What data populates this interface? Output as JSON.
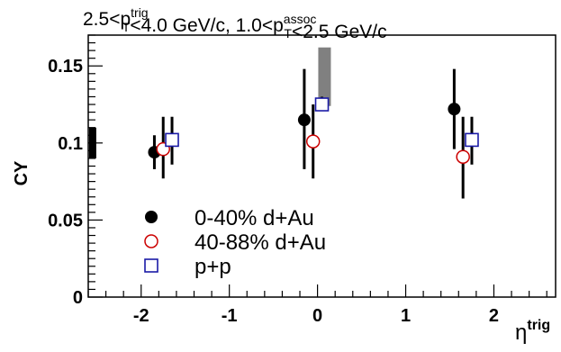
{
  "chart_data": {
    "type": "scatter",
    "title": {
      "parts": [
        {
          "t": "2.5<p"
        },
        {
          "sub": "T",
          "sup": "trig"
        },
        {
          "t": "<4.0 GeV/c, 1.0<p"
        },
        {
          "sub": "T",
          "sup": "assoc"
        },
        {
          "t": "<2.5 GeV/c"
        }
      ]
    },
    "xlabel": {
      "base": "η",
      "sup": "trig"
    },
    "ylabel": "CY",
    "xlim": [
      -2.6,
      2.7
    ],
    "ylim": [
      0,
      0.17
    ],
    "xticks": [
      -2,
      -1,
      0,
      1,
      2
    ],
    "xtick_labels": [
      "-2",
      "-1",
      "0",
      "1",
      "2"
    ],
    "yticks": [
      0,
      0.05,
      0.1,
      0.15
    ],
    "ytick_labels": [
      "0",
      "0.05",
      "0.1",
      "0.15"
    ],
    "legend_position": "bottom-left",
    "series": [
      {
        "name": "0-40% d+Au",
        "marker": "filled-circle",
        "color": "#000000",
        "points": [
          {
            "x": -1.85,
            "y": 0.094,
            "err_lo": 0.083,
            "err_hi": 0.105
          },
          {
            "x": -0.15,
            "y": 0.115,
            "err_lo": 0.083,
            "err_hi": 0.148
          },
          {
            "x": 1.55,
            "y": 0.122,
            "err_lo": 0.096,
            "err_hi": 0.148
          }
        ]
      },
      {
        "name": "40-88% d+Au",
        "marker": "open-circle",
        "color": "#cc0000",
        "points": [
          {
            "x": -1.75,
            "y": 0.096,
            "err_lo": 0.077,
            "err_hi": 0.117
          },
          {
            "x": -0.05,
            "y": 0.101,
            "err_lo": 0.077,
            "err_hi": 0.125
          },
          {
            "x": 1.65,
            "y": 0.091,
            "err_lo": 0.064,
            "err_hi": 0.117
          }
        ]
      },
      {
        "name": "p+p",
        "marker": "open-square",
        "color": "#1a1aa6",
        "points": [
          {
            "x": -1.65,
            "y": 0.102,
            "err_lo": 0.086,
            "err_hi": 0.117
          },
          {
            "x": 0.05,
            "y": 0.125,
            "err_lo": 0.121,
            "err_hi": 0.13
          },
          {
            "x": 1.75,
            "y": 0.102,
            "err_lo": 0.086,
            "err_hi": 0.117
          }
        ]
      }
    ],
    "systematic_bands": [
      {
        "x": 0.08,
        "y_lo": 0.124,
        "y_hi": 0.162,
        "color": "#808080"
      },
      {
        "x": -2.55,
        "y_lo": 0.09,
        "y_hi": 0.11,
        "color": "#000000"
      }
    ]
  }
}
